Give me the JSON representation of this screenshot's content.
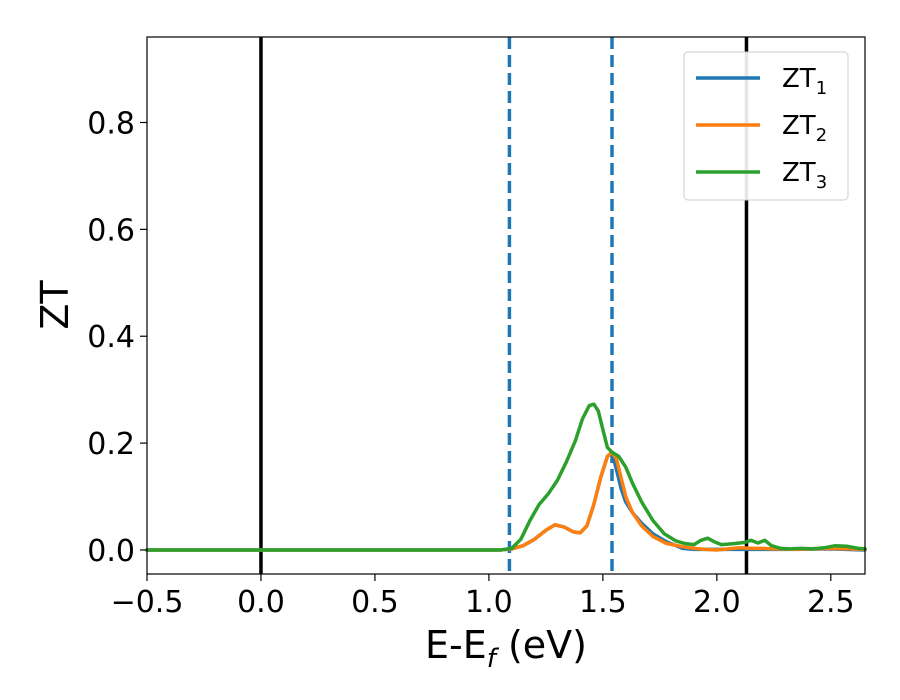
{
  "chart_data": {
    "type": "line",
    "xlabel_main": "E-E",
    "xlabel_sub": "f",
    "xlabel_unit": " (eV)",
    "ylabel": "ZT",
    "xlim": [
      -0.5,
      2.65
    ],
    "ylim": [
      -0.045,
      0.96
    ],
    "x_ticks": [
      -0.5,
      0.0,
      0.5,
      1.0,
      1.5,
      2.0,
      2.5
    ],
    "x_tick_labels": [
      "−0.5",
      "0.0",
      "0.5",
      "1.0",
      "1.5",
      "2.0",
      "2.5"
    ],
    "y_ticks": [
      0.0,
      0.2,
      0.4,
      0.6,
      0.8
    ],
    "y_tick_labels": [
      "0.0",
      "0.2",
      "0.4",
      "0.6",
      "0.8"
    ],
    "grid": false,
    "legend_position": "top-right",
    "vertical_lines": [
      {
        "x": 0.0,
        "style": "solid",
        "color": "#000000"
      },
      {
        "x": 2.13,
        "style": "solid",
        "color": "#000000"
      },
      {
        "x": 1.09,
        "style": "dashed",
        "color": "#1f77b4"
      },
      {
        "x": 1.54,
        "style": "dashed",
        "color": "#1f77b4"
      }
    ],
    "series": [
      {
        "name": "ZT",
        "sub": "1",
        "color": "#1f77b4",
        "points": [
          [
            -0.5,
            0.0
          ],
          [
            1.05,
            0.0
          ],
          [
            1.1,
            0.002
          ],
          [
            1.15,
            0.008
          ],
          [
            1.2,
            0.02
          ],
          [
            1.25,
            0.037
          ],
          [
            1.29,
            0.047
          ],
          [
            1.33,
            0.043
          ],
          [
            1.37,
            0.034
          ],
          [
            1.4,
            0.032
          ],
          [
            1.43,
            0.045
          ],
          [
            1.46,
            0.085
          ],
          [
            1.49,
            0.135
          ],
          [
            1.52,
            0.175
          ],
          [
            1.54,
            0.183
          ],
          [
            1.56,
            0.15
          ],
          [
            1.58,
            0.115
          ],
          [
            1.6,
            0.09
          ],
          [
            1.63,
            0.07
          ],
          [
            1.67,
            0.05
          ],
          [
            1.72,
            0.03
          ],
          [
            1.78,
            0.015
          ],
          [
            1.85,
            0.003
          ],
          [
            1.9,
            0.001
          ],
          [
            2.0,
            0.001
          ],
          [
            2.1,
            0.001
          ],
          [
            2.3,
            0.001
          ],
          [
            2.5,
            0.002
          ],
          [
            2.65,
            0.0
          ]
        ]
      },
      {
        "name": "ZT",
        "sub": "2",
        "color": "#ff7f0e",
        "points": [
          [
            -0.5,
            0.0
          ],
          [
            1.05,
            0.0
          ],
          [
            1.1,
            0.002
          ],
          [
            1.15,
            0.008
          ],
          [
            1.2,
            0.02
          ],
          [
            1.25,
            0.037
          ],
          [
            1.29,
            0.047
          ],
          [
            1.33,
            0.043
          ],
          [
            1.37,
            0.034
          ],
          [
            1.4,
            0.032
          ],
          [
            1.43,
            0.045
          ],
          [
            1.46,
            0.085
          ],
          [
            1.49,
            0.135
          ],
          [
            1.52,
            0.175
          ],
          [
            1.54,
            0.183
          ],
          [
            1.56,
            0.17
          ],
          [
            1.58,
            0.135
          ],
          [
            1.6,
            0.1
          ],
          [
            1.63,
            0.07
          ],
          [
            1.67,
            0.045
          ],
          [
            1.72,
            0.025
          ],
          [
            1.78,
            0.012
          ],
          [
            1.85,
            0.006
          ],
          [
            1.9,
            0.003
          ],
          [
            1.95,
            0.001
          ],
          [
            2.0,
            0.0
          ],
          [
            2.05,
            0.002
          ],
          [
            2.1,
            0.004
          ],
          [
            2.15,
            0.003
          ],
          [
            2.2,
            0.003
          ],
          [
            2.25,
            0.002
          ],
          [
            2.35,
            0.001
          ],
          [
            2.5,
            0.003
          ],
          [
            2.65,
            0.001
          ]
        ]
      },
      {
        "name": "ZT",
        "sub": "3",
        "color": "#2ca02c",
        "points": [
          [
            -0.5,
            0.0
          ],
          [
            1.05,
            0.0
          ],
          [
            1.1,
            0.003
          ],
          [
            1.14,
            0.02
          ],
          [
            1.18,
            0.055
          ],
          [
            1.22,
            0.085
          ],
          [
            1.26,
            0.105
          ],
          [
            1.3,
            0.13
          ],
          [
            1.34,
            0.165
          ],
          [
            1.38,
            0.205
          ],
          [
            1.41,
            0.245
          ],
          [
            1.44,
            0.27
          ],
          [
            1.46,
            0.273
          ],
          [
            1.48,
            0.26
          ],
          [
            1.5,
            0.225
          ],
          [
            1.52,
            0.192
          ],
          [
            1.54,
            0.183
          ],
          [
            1.57,
            0.175
          ],
          [
            1.6,
            0.155
          ],
          [
            1.63,
            0.125
          ],
          [
            1.67,
            0.09
          ],
          [
            1.72,
            0.055
          ],
          [
            1.77,
            0.03
          ],
          [
            1.82,
            0.017
          ],
          [
            1.86,
            0.012
          ],
          [
            1.9,
            0.01
          ],
          [
            1.93,
            0.018
          ],
          [
            1.96,
            0.022
          ],
          [
            1.99,
            0.015
          ],
          [
            2.02,
            0.01
          ],
          [
            2.05,
            0.011
          ],
          [
            2.08,
            0.012
          ],
          [
            2.12,
            0.014
          ],
          [
            2.15,
            0.018
          ],
          [
            2.18,
            0.013
          ],
          [
            2.21,
            0.018
          ],
          [
            2.24,
            0.008
          ],
          [
            2.28,
            0.003
          ],
          [
            2.32,
            0.002
          ],
          [
            2.37,
            0.003
          ],
          [
            2.42,
            0.002
          ],
          [
            2.47,
            0.004
          ],
          [
            2.52,
            0.008
          ],
          [
            2.57,
            0.007
          ],
          [
            2.62,
            0.003
          ],
          [
            2.65,
            0.002
          ]
        ]
      }
    ]
  }
}
